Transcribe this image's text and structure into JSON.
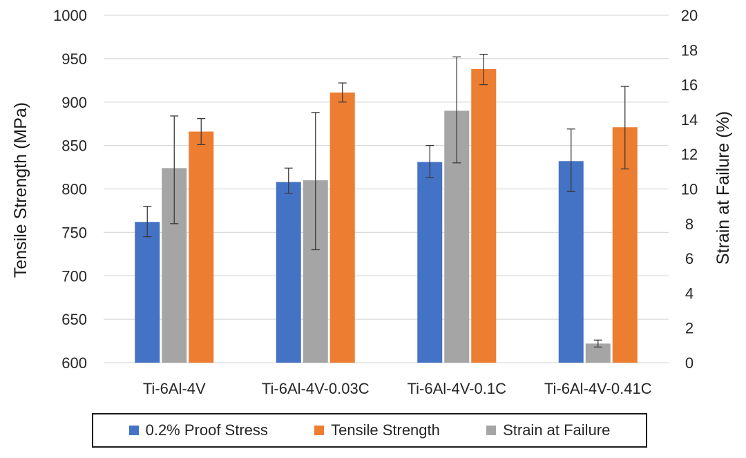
{
  "chart_data": {
    "type": "bar",
    "categories": [
      "Ti-6Al-4V",
      "Ti-6Al-4V-0.03C",
      "Ti-6Al-4V-0.1C",
      "Ti-6Al-4V-0.41C"
    ],
    "series": [
      {
        "name": "0.2% Proof Stress",
        "axis": "left",
        "color": "#4472C4",
        "values": [
          762,
          808,
          831,
          832
        ],
        "err_low": [
          745,
          795,
          813,
          797
        ],
        "err_high": [
          780,
          824,
          850,
          869
        ]
      },
      {
        "name": "Strain at Failure",
        "axis": "right",
        "color": "#A5A5A5",
        "values": [
          11.2,
          10.5,
          14.5,
          1.1
        ],
        "err_low": [
          8.0,
          6.5,
          11.5,
          0.9
        ],
        "err_high": [
          14.2,
          14.4,
          17.6,
          1.3
        ]
      },
      {
        "name": "Tensile Strength",
        "axis": "left",
        "color": "#ED7D31",
        "values": [
          866,
          911,
          938,
          871
        ],
        "err_low": [
          851,
          900,
          920,
          823
        ],
        "err_high": [
          881,
          922,
          955,
          918
        ]
      }
    ],
    "ylabel": "Tensile Strength (MPa)",
    "y2label": "Strain at Failure (%)",
    "ylim": [
      600,
      1000
    ],
    "y2lim": [
      0,
      20
    ],
    "yticks": [
      600,
      650,
      700,
      750,
      800,
      850,
      900,
      950,
      1000
    ],
    "y2ticks": [
      0,
      2,
      4,
      6,
      8,
      10,
      12,
      14,
      16,
      18,
      20
    ],
    "grid": true,
    "legend_position": "bottom",
    "legend_order": [
      "0.2% Proof Stress",
      "Tensile Strength",
      "Strain at Failure"
    ]
  }
}
